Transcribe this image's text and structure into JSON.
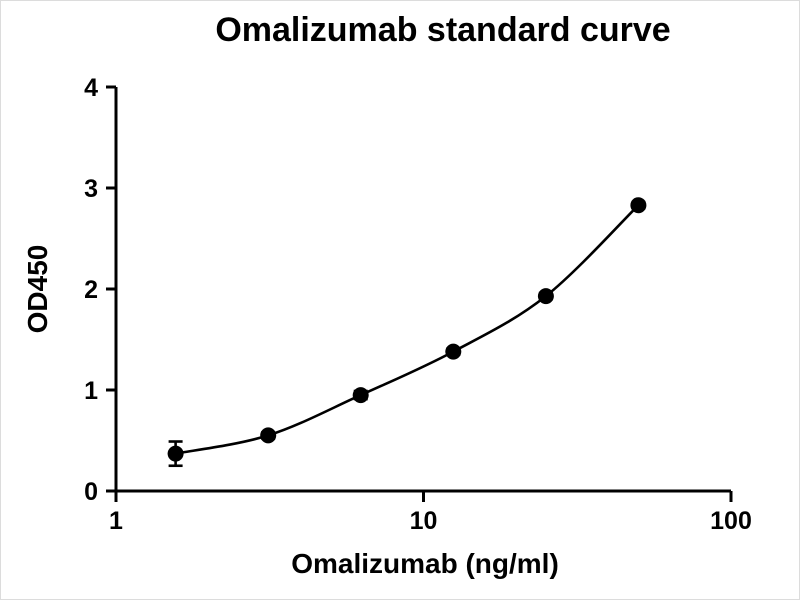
{
  "figure": {
    "background_color": "#ffffff",
    "foreground_color": "#000000"
  },
  "chart_data": {
    "type": "scatter",
    "title": "Omalizumab standard curve",
    "xlabel": "Omalizumab (ng/ml)",
    "ylabel": "OD450",
    "x_scale": "log10",
    "xlim": [
      1,
      100
    ],
    "ylim": [
      0,
      4
    ],
    "x_ticks": [
      1,
      10,
      100
    ],
    "y_ticks": [
      0,
      1,
      2,
      3,
      4
    ],
    "grid": "off",
    "legend": "none",
    "series": [
      {
        "name": "Omalizumab standard",
        "marker": "filled-circle",
        "marker_color": "#000000",
        "line": "smooth-fit-curve",
        "line_color": "#000000",
        "x": [
          1.5625,
          3.125,
          6.25,
          12.5,
          25,
          50
        ],
        "y": [
          0.37,
          0.55,
          0.95,
          1.38,
          1.93,
          2.83
        ],
        "y_error": [
          0.12,
          0.03,
          0.04,
          0.03,
          0.03,
          0.03
        ]
      }
    ]
  }
}
